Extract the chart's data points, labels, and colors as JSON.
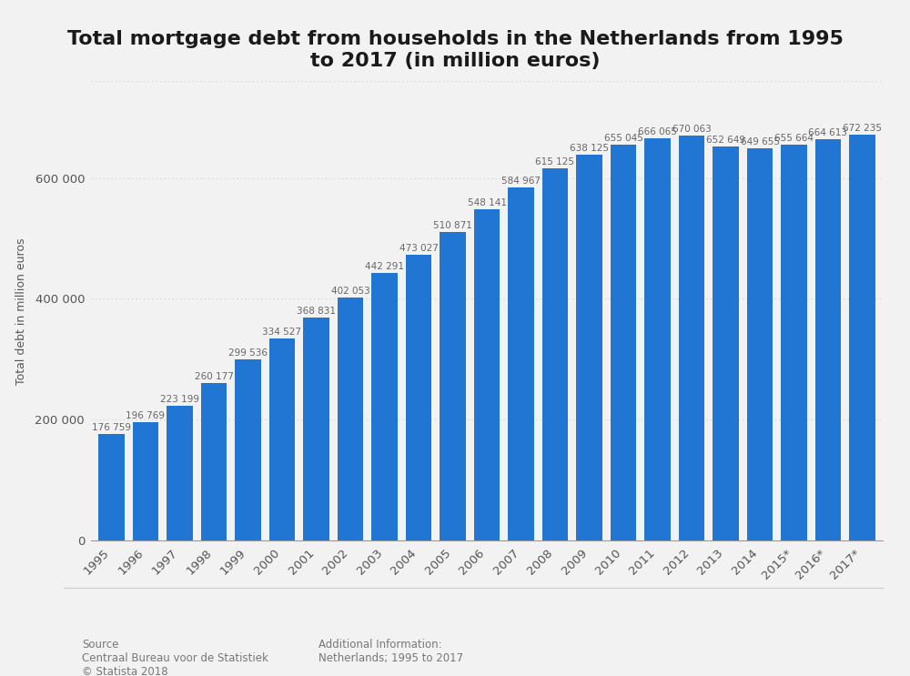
{
  "title": "Total mortgage debt from households in the Netherlands from 1995\nto 2017 (in million euros)",
  "ylabel": "Total debt in million euros",
  "categories": [
    "1995",
    "1996",
    "1997",
    "1998",
    "1999",
    "2000",
    "2001",
    "2002",
    "2003",
    "2004",
    "2005",
    "2006",
    "2007",
    "2008",
    "2009",
    "2010",
    "2011",
    "2012",
    "2013",
    "2014",
    "2015*",
    "2016*",
    "2017*"
  ],
  "values": [
    176759,
    196769,
    223199,
    260177,
    299536,
    334527,
    368831,
    402053,
    442291,
    473027,
    510871,
    548141,
    584967,
    615125,
    638125,
    655045,
    666065,
    670063,
    652649,
    649655,
    655664,
    664613,
    672235
  ],
  "bar_color": "#2176d4",
  "background_color": "#f2f2f2",
  "plot_background_color": "#f2f2f2",
  "ylim": [
    0,
    760000
  ],
  "yticks": [
    0,
    200000,
    400000,
    600000
  ],
  "grid_color": "#cccccc",
  "bar_label_fontsize": 7.5,
  "title_fontsize": 16,
  "axis_label_fontsize": 9,
  "tick_fontsize": 9.5,
  "source_text": "Source\nCentraal Bureau voor de Statistiek\n© Statista 2018",
  "additional_text": "Additional Information:\nNetherlands; 1995 to 2017"
}
